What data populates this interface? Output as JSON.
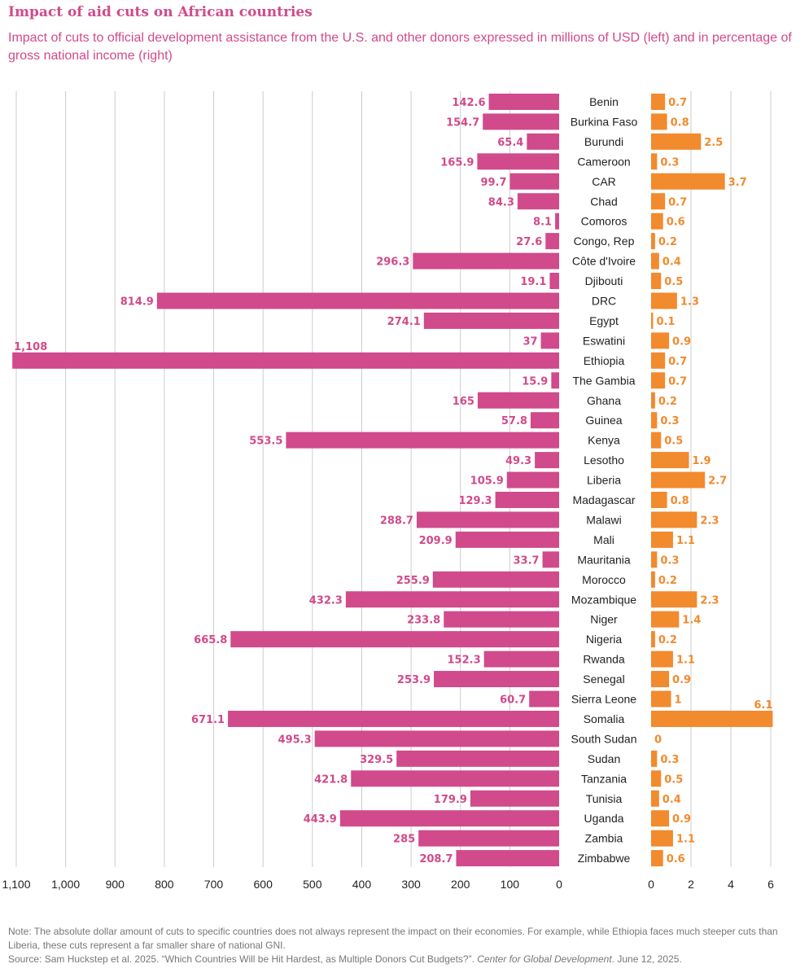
{
  "title": "Impact of aid cuts on African countries",
  "subtitle": "Impact of cuts to official development assistance from the U.S. and other donors expressed in millions of USD (left) and in percentage of gross national income (right)",
  "note": "Note: The absolute dollar amount of cuts to specific countries does not always represent the impact on their economies. For example, while Ethiopia faces much steeper cuts than Liberia, these cuts represent a far smaller share of national GNI.",
  "source_prefix": "Source: Sam Huckstep et al. 2025. “Which Countries Will be Hit Hardest, as Multiple Donors Cut Budgets?”. ",
  "source_italic": "Center for Global Development",
  "source_suffix": ". June 12, 2025.",
  "colors": {
    "usd": "#d14a8b",
    "gni": "#f28a2e",
    "grid": "#cccccc"
  },
  "chart_data": {
    "type": "bar",
    "orientation": "horizontal",
    "categories": [
      "Benin",
      "Burkina Faso",
      "Burundi",
      "Cameroon",
      "CAR",
      "Chad",
      "Comoros",
      "Congo, Rep",
      "Côte d'Ivoire",
      "Djibouti",
      "DRC",
      "Egypt",
      "Eswatini",
      "Ethiopia",
      "The Gambia",
      "Ghana",
      "Guinea",
      "Kenya",
      "Lesotho",
      "Liberia",
      "Madagascar",
      "Malawi",
      "Mali",
      "Mauritania",
      "Morocco",
      "Mozambique",
      "Niger",
      "Nigeria",
      "Rwanda",
      "Senegal",
      "Sierra Leone",
      "Somalia",
      "South Sudan",
      "Sudan",
      "Tanzania",
      "Tunisia",
      "Uganda",
      "Zambia",
      "Zimbabwe"
    ],
    "series": [
      {
        "values": [
          142.6,
          154.7,
          65.4,
          165.9,
          99.7,
          84.3,
          8.1,
          27.6,
          296.3,
          19.1,
          814.9,
          274.1,
          37,
          1108,
          15.9,
          165,
          57.8,
          553.5,
          49.3,
          105.9,
          129.3,
          288.7,
          209.9,
          33.7,
          255.9,
          432.3,
          233.8,
          665.8,
          152.3,
          253.9,
          60.7,
          671.1,
          495.3,
          329.5,
          421.8,
          179.9,
          443.9,
          285,
          208.7
        ],
        "labels": [
          "142.6",
          "154.7",
          "65.4",
          "165.9",
          "99.7",
          "84.3",
          "8.1",
          "27.6",
          "296.3",
          "19.1",
          "814.9",
          "274.1",
          "37",
          "1,108",
          "15.9",
          "165",
          "57.8",
          "553.5",
          "49.3",
          "105.9",
          "129.3",
          "288.7",
          "209.9",
          "33.7",
          "255.9",
          "432.3",
          "233.8",
          "665.8",
          "152.3",
          "253.9",
          "60.7",
          "671.1",
          "495.3",
          "329.5",
          "421.8",
          "179.9",
          "443.9",
          "285",
          "208.7"
        ],
        "xlim": [
          0,
          1100
        ],
        "ticks": [
          "1,100",
          "1,000",
          "900",
          "800",
          "700",
          "600",
          "500",
          "400",
          "300",
          "200",
          "100",
          "0"
        ],
        "direction": "leftward"
      },
      {
        "values": [
          0.7,
          0.8,
          2.5,
          0.3,
          3.7,
          0.7,
          0.6,
          0.2,
          0.4,
          0.5,
          1.3,
          0.1,
          0.9,
          0.7,
          0.7,
          0.2,
          0.3,
          0.5,
          1.9,
          2.7,
          0.8,
          2.3,
          1.1,
          0.3,
          0.2,
          2.3,
          1.4,
          0.2,
          1.1,
          0.9,
          1,
          6.1,
          0,
          0.3,
          0.5,
          0.4,
          0.9,
          1.1,
          0.6
        ],
        "labels": [
          "0.7",
          "0.8",
          "2.5",
          "0.3",
          "3.7",
          "0.7",
          "0.6",
          "0.2",
          "0.4",
          "0.5",
          "1.3",
          "0.1",
          "0.9",
          "0.7",
          "0.7",
          "0.2",
          "0.3",
          "0.5",
          "1.9",
          "2.7",
          "0.8",
          "2.3",
          "1.1",
          "0.3",
          "0.2",
          "2.3",
          "1.4",
          "0.2",
          "1.1",
          "0.9",
          "1",
          "6.1",
          "0",
          "0.3",
          "0.5",
          "0.4",
          "0.9",
          "1.1",
          "0.6"
        ],
        "xlim": [
          0,
          6
        ],
        "ticks": [
          "0",
          "2",
          "4",
          "6"
        ],
        "direction": "rightward"
      }
    ],
    "grid": true
  }
}
